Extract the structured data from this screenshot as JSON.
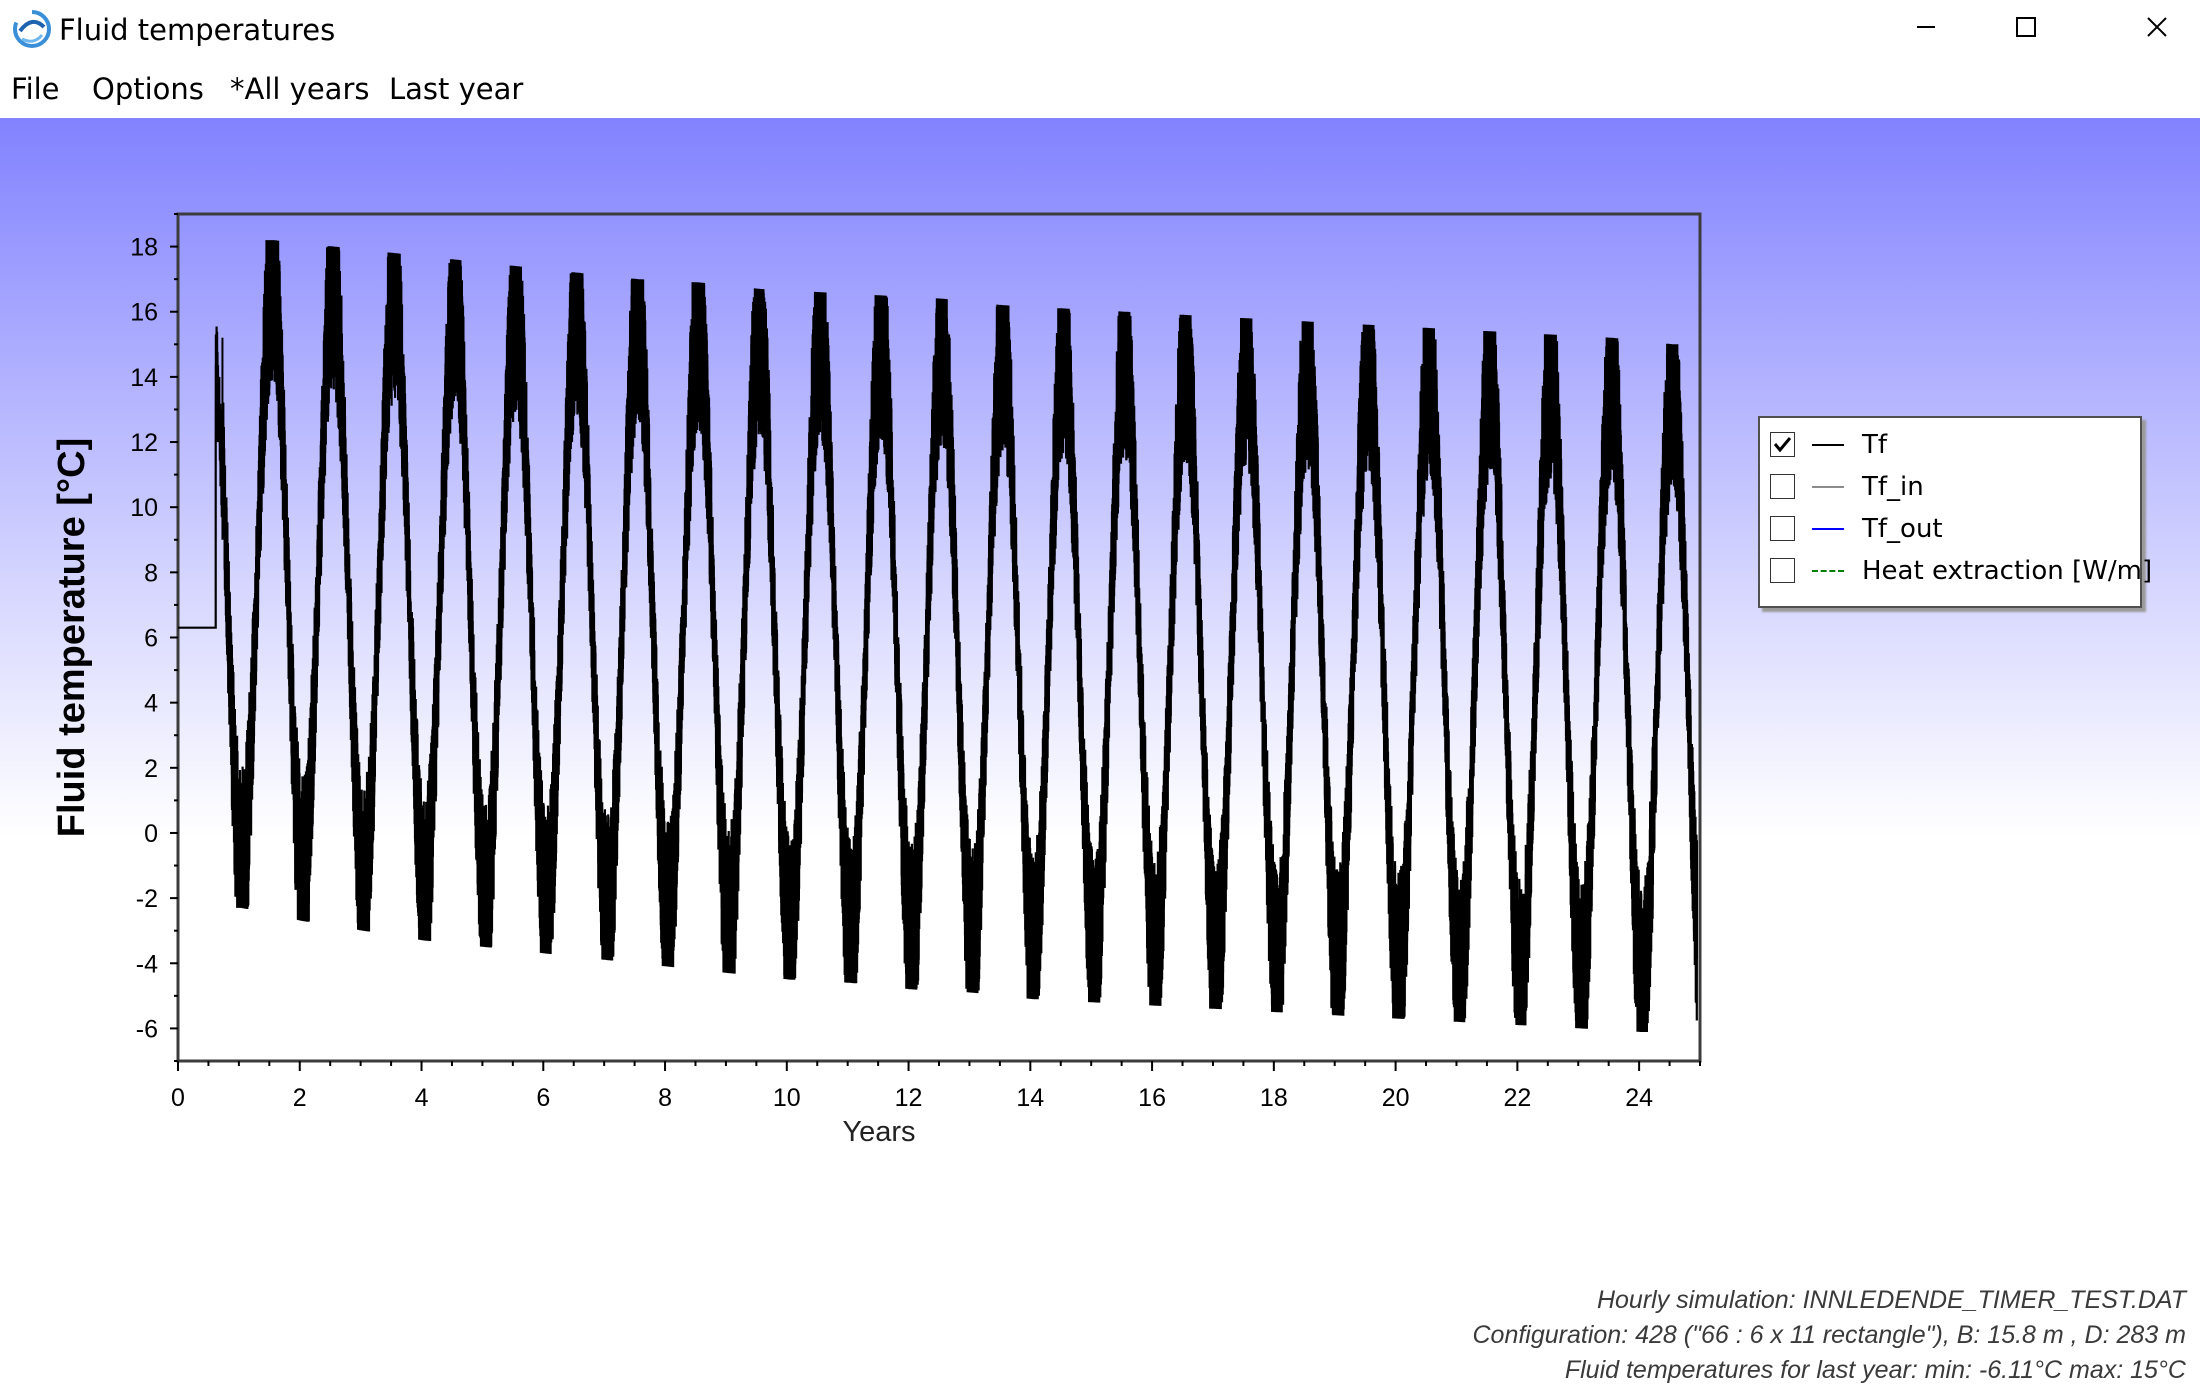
{
  "window": {
    "title": "Fluid temperatures",
    "icon": "app-swirl-icon",
    "controls": [
      "minimize-icon",
      "maximize-icon",
      "close-icon"
    ]
  },
  "menu": [
    {
      "label": "File"
    },
    {
      "label": "Options"
    },
    {
      "label": "*All years"
    },
    {
      "label": "Last year"
    }
  ],
  "legend": [
    {
      "label": "Tf",
      "checked": true,
      "color": "#000000",
      "style": "solid"
    },
    {
      "label": "Tf_in",
      "checked": false,
      "color": "#8c8c8c",
      "style": "solid"
    },
    {
      "label": "Tf_out",
      "checked": false,
      "color": "#0000ff",
      "style": "solid"
    },
    {
      "label": "Heat extraction [W/m]",
      "checked": false,
      "color": "#008000",
      "style": "dashed"
    }
  ],
  "info": {
    "line1": "Hourly simulation: INNLEDENDE_TIMER_TEST.DAT",
    "line2": "Configuration: 428 (\"66 : 6 x 11 rectangle\"), B: 15.8 m , D: 283 m",
    "line3": "Fluid temperatures for last year: min: -6.11°C max: 15°C"
  },
  "colors": {
    "gradient_top": "#8282ff",
    "gradient_bottom": "#ffffff",
    "series": "#000000"
  },
  "chart_data": {
    "type": "line",
    "xlabel": "Years",
    "ylabel": "Fluid temperature [°C]",
    "xlim": [
      0,
      25
    ],
    "ylim": [
      -7,
      19
    ],
    "x_ticks": [
      0,
      2,
      4,
      6,
      8,
      10,
      12,
      14,
      16,
      18,
      20,
      22,
      24
    ],
    "y_ticks": [
      -6,
      -4,
      -2,
      0,
      2,
      4,
      6,
      8,
      10,
      12,
      14,
      16,
      18
    ],
    "initial_value": 6.3,
    "series": [
      {
        "name": "Tf",
        "yearly_peaks": [
          {
            "x": 1.55,
            "y": 18.2
          },
          {
            "x": 2.55,
            "y": 18.0
          },
          {
            "x": 3.55,
            "y": 17.8
          },
          {
            "x": 4.55,
            "y": 17.6
          },
          {
            "x": 5.55,
            "y": 17.4
          },
          {
            "x": 6.55,
            "y": 17.2
          },
          {
            "x": 7.55,
            "y": 17.0
          },
          {
            "x": 8.55,
            "y": 16.9
          },
          {
            "x": 9.55,
            "y": 16.7
          },
          {
            "x": 10.55,
            "y": 16.6
          },
          {
            "x": 11.55,
            "y": 16.5
          },
          {
            "x": 12.55,
            "y": 16.4
          },
          {
            "x": 13.55,
            "y": 16.2
          },
          {
            "x": 14.55,
            "y": 16.1
          },
          {
            "x": 15.55,
            "y": 16.0
          },
          {
            "x": 16.55,
            "y": 15.9
          },
          {
            "x": 17.55,
            "y": 15.8
          },
          {
            "x": 18.55,
            "y": 15.7
          },
          {
            "x": 19.55,
            "y": 15.6
          },
          {
            "x": 20.55,
            "y": 15.5
          },
          {
            "x": 21.55,
            "y": 15.4
          },
          {
            "x": 22.55,
            "y": 15.3
          },
          {
            "x": 23.55,
            "y": 15.2
          },
          {
            "x": 24.55,
            "y": 15.0
          }
        ],
        "yearly_troughs": [
          {
            "x": 1.05,
            "y": -2.3
          },
          {
            "x": 2.05,
            "y": -2.7
          },
          {
            "x": 3.05,
            "y": -3.0
          },
          {
            "x": 4.05,
            "y": -3.3
          },
          {
            "x": 5.05,
            "y": -3.5
          },
          {
            "x": 6.05,
            "y": -3.7
          },
          {
            "x": 7.05,
            "y": -3.9
          },
          {
            "x": 8.05,
            "y": -4.1
          },
          {
            "x": 9.05,
            "y": -4.3
          },
          {
            "x": 10.05,
            "y": -4.5
          },
          {
            "x": 11.05,
            "y": -4.6
          },
          {
            "x": 12.05,
            "y": -4.8
          },
          {
            "x": 13.05,
            "y": -4.9
          },
          {
            "x": 14.05,
            "y": -5.1
          },
          {
            "x": 15.05,
            "y": -5.2
          },
          {
            "x": 16.05,
            "y": -5.3
          },
          {
            "x": 17.05,
            "y": -5.4
          },
          {
            "x": 18.05,
            "y": -5.5
          },
          {
            "x": 19.05,
            "y": -5.6
          },
          {
            "x": 20.05,
            "y": -5.7
          },
          {
            "x": 21.05,
            "y": -5.8
          },
          {
            "x": 22.05,
            "y": -5.9
          },
          {
            "x": 23.05,
            "y": -6.0
          },
          {
            "x": 24.05,
            "y": -6.11
          }
        ]
      }
    ]
  }
}
